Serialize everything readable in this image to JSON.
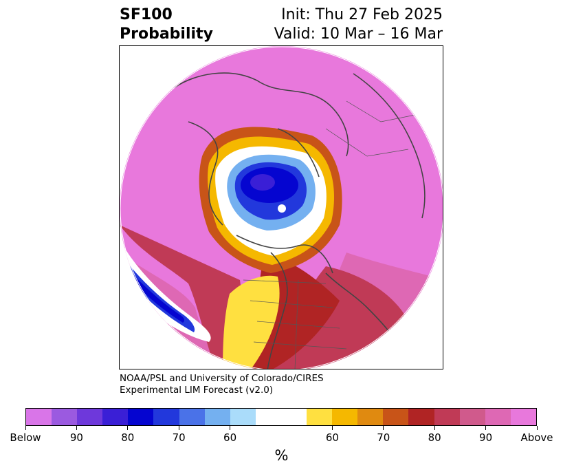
{
  "header": {
    "title_line1": "SF100",
    "title_line2": "Probability",
    "init": "Init: Thu 27 Feb 2025",
    "valid": "Valid: 10 Mar – 16 Mar"
  },
  "credit": {
    "line1": "NOAA/PSL and University of Colorado/CIRES",
    "line2": "Experimental LIM Forecast (v2.0)"
  },
  "colorbar": {
    "colors": [
      "#d975e8",
      "#9b5ae0",
      "#6e38db",
      "#3a1fd6",
      "#0505d0",
      "#2238dc",
      "#4a72e8",
      "#74b0f0",
      "#aadcfa",
      "#ffffff",
      "#ffffff",
      "#ffe040",
      "#f5b800",
      "#e08a10",
      "#c85418",
      "#b02424",
      "#c03a56",
      "#d05a8c",
      "#de68b4",
      "#e878dc"
    ],
    "labels": [
      "Below",
      "90",
      "80",
      "70",
      "60",
      "60",
      "70",
      "80",
      "90",
      "Above"
    ],
    "unit": "%"
  },
  "map": {
    "legend_colors": {
      "far_above": "#e878dc",
      "above_90": "#de68b4",
      "above_80": "#c03a56",
      "above_70": "#c85418",
      "above_60": "#f5b800",
      "neutral": "#ffffff",
      "below_60": "#74b0f0",
      "below_80": "#2238dc",
      "far_below": "#0505d0"
    }
  }
}
